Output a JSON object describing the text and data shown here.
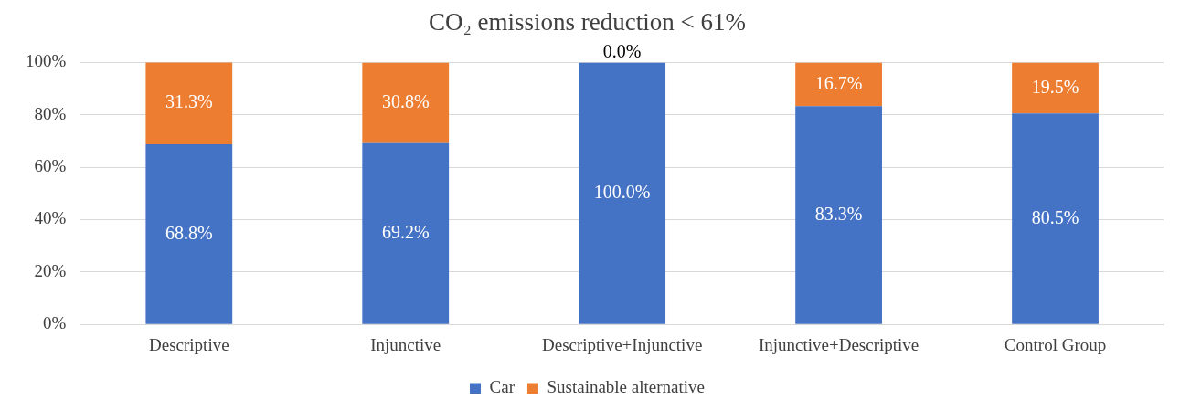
{
  "chart_data": {
    "type": "bar",
    "title": "CO₂ emissions reduction < 61%",
    "categories": [
      "Descriptive",
      "Injunctive",
      "Descriptive+Injunctive",
      "Injunctive+Descriptive",
      "Control Group"
    ],
    "stacked": true,
    "series": [
      {
        "name": "Car",
        "color": "#4472c4",
        "values": [
          68.8,
          69.2,
          100.0,
          83.3,
          80.5
        ],
        "value_labels": [
          "68.8%",
          "69.2%",
          "100.0%",
          "83.3%",
          "80.5%"
        ]
      },
      {
        "name": "Sustainable alternative",
        "color": "#ed7d31",
        "values": [
          31.3,
          30.8,
          0.0,
          16.7,
          19.5
        ],
        "value_labels": [
          "31.3%",
          "30.8%",
          "0.0%",
          "16.7%",
          "19.5%"
        ]
      }
    ],
    "ylim": [
      0,
      100
    ],
    "yticks": [
      {
        "value": 0,
        "label": "0%"
      },
      {
        "value": 20,
        "label": "20%"
      },
      {
        "value": 40,
        "label": "40%"
      },
      {
        "value": 60,
        "label": "60%"
      },
      {
        "value": 80,
        "label": "80%"
      },
      {
        "value": 100,
        "label": "100%"
      }
    ],
    "grid": "y",
    "legend": "bottom"
  }
}
